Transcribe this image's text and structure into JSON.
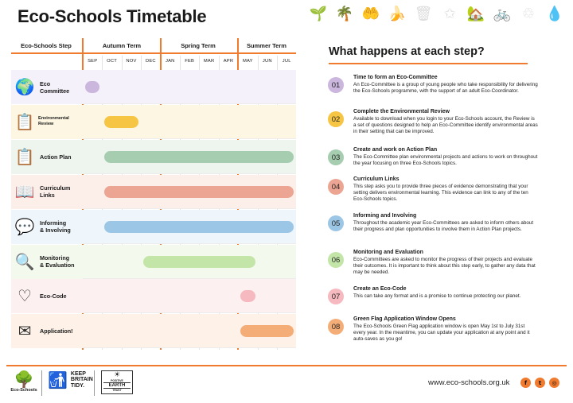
{
  "title": "Eco-Schools Timetable",
  "top_icons": [
    "🌱",
    "🌴",
    "🤲",
    "🍌",
    "🗑",
    "✩",
    "🏡",
    "🚲",
    "♲",
    "💧"
  ],
  "timetable": {
    "step_header": "Eco-Schools Step",
    "terms": [
      "Autumn Term",
      "Spring Term",
      "Summer Term"
    ],
    "months": [
      "SEP",
      "OCT",
      "NOV",
      "DEC",
      "JAN",
      "FEB",
      "MAR",
      "APR",
      "MAY",
      "JUN",
      "JUL"
    ],
    "rows": [
      {
        "label": "Eco\nCommittee",
        "icon": "globe-hands-icon",
        "glyph": "🌍",
        "bg": "#f5f1fa",
        "color": "#cbb6dd",
        "start_month": "SEP",
        "end_month": "SEP"
      },
      {
        "label": "Environmental\nReview",
        "icon": "clipboard-magnifier-icon",
        "glyph": "📋",
        "bg": "#fdf6e2",
        "color": "#f5c543",
        "start_month": "OCT",
        "end_month": "NOV"
      },
      {
        "label": "Action Plan",
        "icon": "clipboard-icon",
        "glyph": "📋",
        "bg": "#eef5ef",
        "color": "#a6cdb0",
        "start_month": "OCT",
        "end_month": "JUL"
      },
      {
        "label": "Curriculum\nLinks",
        "icon": "open-book-icon",
        "glyph": "📖",
        "bg": "#fcefea",
        "color": "#eba592",
        "start_month": "OCT",
        "end_month": "JUL"
      },
      {
        "label": "Informing\n& Involving",
        "icon": "speech-bubbles-icon",
        "glyph": "💬",
        "bg": "#eef5fb",
        "color": "#9cc6e6",
        "start_month": "OCT",
        "end_month": "JUL"
      },
      {
        "label": "Monitoring\n& Evaluation",
        "icon": "magnifier-icon",
        "glyph": "🔍",
        "bg": "#f4f9ee",
        "color": "#c3e6a8",
        "start_month": "DEC",
        "end_month": "MAY"
      },
      {
        "label": "Eco-Code",
        "icon": "heart-leaf-icon",
        "glyph": "♡",
        "bg": "#fdf0f1",
        "color": "#f5b9bf",
        "start_month": "MAY",
        "end_month": "MAY"
      },
      {
        "label": "Application!",
        "icon": "envelope-icon",
        "glyph": "✉",
        "bg": "#fdf1e8",
        "color": "#f5ad78",
        "start_month": "MAY",
        "end_month": "JUL"
      }
    ]
  },
  "steps_title": "What happens at each step?",
  "steps": [
    {
      "num": "01",
      "color": "#cbb6dd",
      "head": "Time to form an Eco-Committee",
      "body": "An Eco-Committee is a group of young people who take responsibility for delivering the Eco-Schools programme, with the support of an adult Eco-Coordinator."
    },
    {
      "num": "02",
      "color": "#f5c543",
      "head": "Complete the Environmental Review",
      "body": "Available to download when you login to your Eco-Schools account, the Review is a set of questions designed to help an Eco-Committee identify environmental areas in their setting that can be improved."
    },
    {
      "num": "03",
      "color": "#a6cdb0",
      "head": "Create and work on Action Plan",
      "body": "The Eco-Committee plan environmental projects and actions to work on throughout the year focusing on three Eco-Schools topics."
    },
    {
      "num": "04",
      "color": "#eba592",
      "head": "Curriculum Links",
      "body": "This step asks you to provide three pieces of evidence demonstrating that your setting delivers environmental learning. This evidence can link to any of the ten Eco-Schools topics."
    },
    {
      "num": "05",
      "color": "#9cc6e6",
      "head": "Informing and Involving",
      "body": "Throughout the academic year Eco-Committees are asked to inform others about their progress and plan opportunities to involve them in Action Plan projects."
    },
    {
      "num": "06",
      "color": "#c3e6a8",
      "head": "Monitoring and Evaluation",
      "body": "Eco-Committees are asked to monitor the progress of their projects and evaluate their outcomes. It is important to think about this step early, to gather any data that may be needed."
    },
    {
      "num": "07",
      "color": "#f5b9bf",
      "head": "Create an Eco-Code",
      "body": "This can take any format and is a promise to continue protecting our planet."
    },
    {
      "num": "08",
      "color": "#f5ad78",
      "head": "Green Flag Application Window Opens",
      "body": "The Eco-Schools Green Flag application window is open May 1st to July 31st every year. In the meantime, you can update your application at any point and it auto-saves as you go!"
    }
  ],
  "footer": {
    "eco_logo": "Eco-Schools",
    "kbt_logo": "KEEP BRITAIN TIDY.",
    "earth_logo": {
      "line1": "POSITIVE",
      "line2": "EARTH",
      "line3": "TRUST"
    },
    "website": "www.eco-schools.org.uk",
    "social": [
      "f",
      "t",
      "◎"
    ]
  }
}
